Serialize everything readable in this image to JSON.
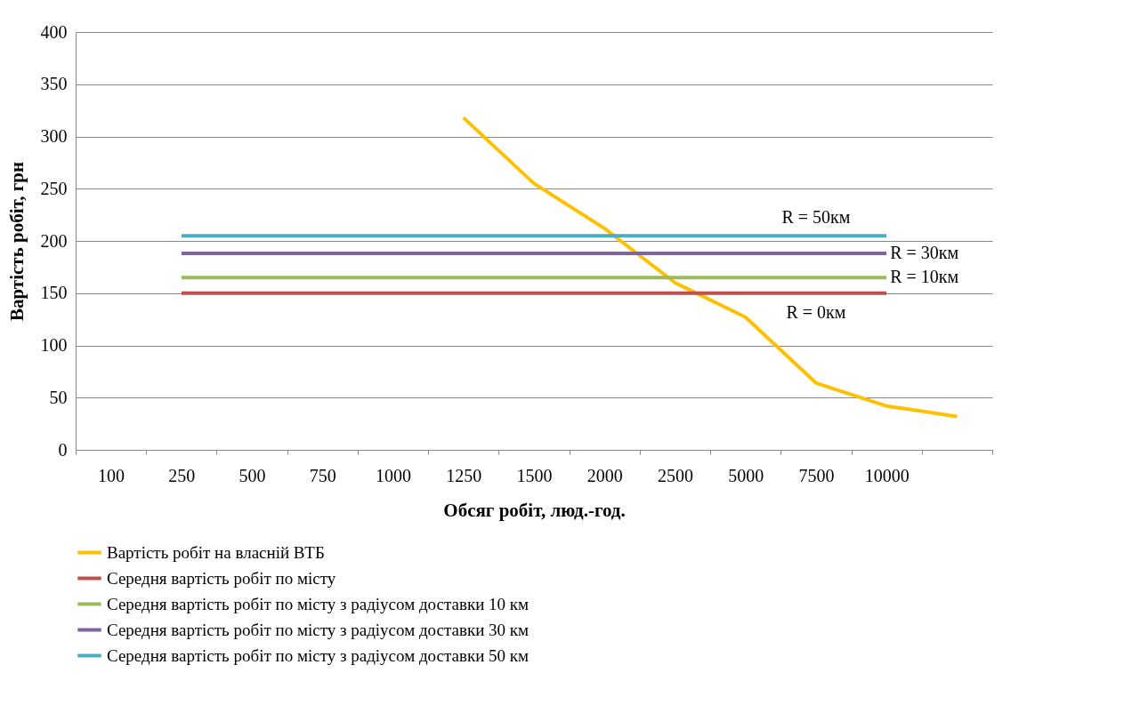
{
  "chart_data": {
    "type": "line",
    "xlabel": "Обсяг робіт,  люд.-год.",
    "ylabel": "Вартість робіт, грн",
    "categories": [
      "100",
      "250",
      "500",
      "750",
      "1000",
      "1250",
      "1500",
      "2000",
      "2500",
      "5000",
      "7500",
      "10000",
      null
    ],
    "series": [
      {
        "name": "Вартість робіт на власній ВТБ",
        "color": "#ffc000",
        "values": [
          null,
          null,
          null,
          null,
          null,
          318,
          255,
          212,
          160,
          127,
          64,
          42,
          32
        ]
      },
      {
        "name": "Середня вартість робіт по місту",
        "color": "#c0504d",
        "values": [
          null,
          150,
          150,
          150,
          150,
          150,
          150,
          150,
          150,
          150,
          150,
          150,
          null
        ]
      },
      {
        "name": "Середня вартість робіт по місту з радіусом доставки 10 км",
        "color": "#9bbb59",
        "values": [
          null,
          165,
          165,
          165,
          165,
          165,
          165,
          165,
          165,
          165,
          165,
          165,
          null
        ]
      },
      {
        "name": "Середня вартість робіт по місту з радіусом доставки 30 км",
        "color": "#8064a2",
        "values": [
          null,
          188,
          188,
          188,
          188,
          188,
          188,
          188,
          188,
          188,
          188,
          188,
          null
        ]
      },
      {
        "name": "Середня вартість робіт по місту з радіусом доставки 50 км",
        "color": "#4bacc6",
        "values": [
          null,
          205,
          205,
          205,
          205,
          205,
          205,
          205,
          205,
          205,
          205,
          205,
          null
        ]
      }
    ],
    "annotations": [
      {
        "text": "R = 50км",
        "x": "7500",
        "y": 205
      },
      {
        "text": "R = 30км",
        "x": "10000",
        "y": 188
      },
      {
        "text": "R = 10км",
        "x": "10000",
        "y": 165
      },
      {
        "text": "R = 0км",
        "x": "7500",
        "y": 150
      }
    ],
    "ylim": [
      0,
      400
    ],
    "yticks": [
      0,
      50,
      100,
      150,
      200,
      250,
      300,
      350,
      400
    ],
    "grid": "y",
    "legend": "bottom",
    "marker": "none",
    "line_style": "solid"
  }
}
